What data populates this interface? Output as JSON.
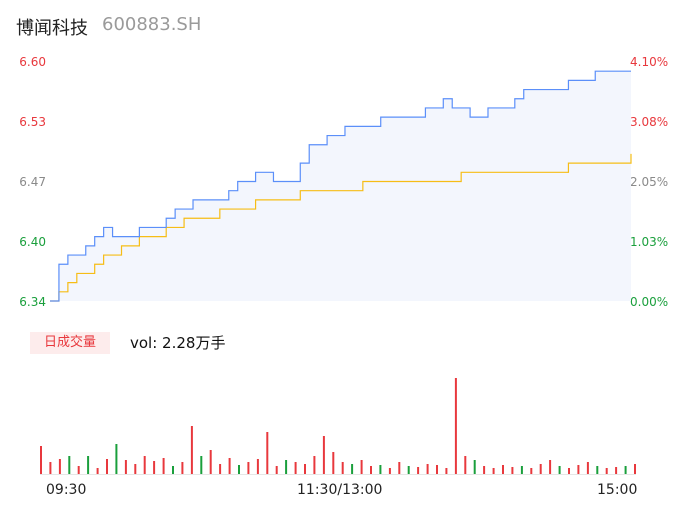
{
  "header": {
    "name": "博闻科技",
    "code": "600883.SH"
  },
  "colors": {
    "price_line": "#5b8ff9",
    "avg_line": "#f6bd16",
    "up": "#e8383d",
    "down": "#1a9f3c",
    "flat": "#8a8a8a"
  },
  "price_axis": {
    "labels": [
      "6.60",
      "6.53",
      "6.47",
      "6.40",
      "6.34"
    ]
  },
  "pct_axis": {
    "labels": [
      "4.10%",
      "3.08%",
      "2.05%",
      "1.03%",
      "0.00%"
    ]
  },
  "volume": {
    "tab_label": "日成交量",
    "summary": "vol: 2.28万手"
  },
  "time_axis": {
    "labels": [
      "09:30",
      "11:30/13:00",
      "15:00"
    ]
  },
  "chart_data": [
    {
      "type": "line",
      "ylim": [
        6.34,
        6.6
      ],
      "series": [
        {
          "values": [
            6.34,
            6.38,
            6.39,
            6.39,
            6.4,
            6.41,
            6.42,
            6.41,
            6.41,
            6.41,
            6.42,
            6.42,
            6.42,
            6.43,
            6.44,
            6.44,
            6.45,
            6.45,
            6.45,
            6.45,
            6.46,
            6.47,
            6.47,
            6.48,
            6.48,
            6.47,
            6.47,
            6.47,
            6.49,
            6.51,
            6.51,
            6.52,
            6.52,
            6.53,
            6.53,
            6.53,
            6.53,
            6.54,
            6.54,
            6.54,
            6.54,
            6.54,
            6.55,
            6.55,
            6.56,
            6.55,
            6.55,
            6.54,
            6.54,
            6.55,
            6.55,
            6.55,
            6.56,
            6.57,
            6.57,
            6.57,
            6.57,
            6.57,
            6.58,
            6.58,
            6.58,
            6.59,
            6.59,
            6.59,
            6.59,
            6.59
          ]
        },
        {
          "values": [
            6.34,
            6.35,
            6.36,
            6.37,
            6.37,
            6.38,
            6.39,
            6.39,
            6.4,
            6.4,
            6.41,
            6.41,
            6.41,
            6.42,
            6.42,
            6.43,
            6.43,
            6.43,
            6.43,
            6.44,
            6.44,
            6.44,
            6.44,
            6.45,
            6.45,
            6.45,
            6.45,
            6.45,
            6.46,
            6.46,
            6.46,
            6.46,
            6.46,
            6.46,
            6.46,
            6.47,
            6.47,
            6.47,
            6.47,
            6.47,
            6.47,
            6.47,
            6.47,
            6.47,
            6.47,
            6.47,
            6.48,
            6.48,
            6.48,
            6.48,
            6.48,
            6.48,
            6.48,
            6.48,
            6.48,
            6.48,
            6.48,
            6.48,
            6.49,
            6.49,
            6.49,
            6.49,
            6.49,
            6.49,
            6.49,
            6.5
          ]
        }
      ]
    },
    {
      "type": "bar",
      "values": [
        28,
        12,
        15,
        18,
        8,
        18,
        6,
        15,
        30,
        14,
        10,
        18,
        13,
        16,
        8,
        12,
        48,
        18,
        24,
        10,
        16,
        9,
        12,
        15,
        42,
        8,
        14,
        12,
        10,
        18,
        38,
        22,
        12,
        10,
        14,
        8,
        9,
        6,
        12,
        8,
        7,
        10,
        9,
        6,
        96,
        18,
        14,
        8,
        6,
        9,
        7,
        8,
        6,
        10,
        14,
        8,
        6,
        9,
        12,
        8,
        6,
        7,
        8,
        10
      ],
      "up": [
        true,
        true,
        true,
        false,
        true,
        false,
        true,
        true,
        false,
        true,
        true,
        true,
        true,
        true,
        false,
        true,
        true,
        false,
        true,
        true,
        true,
        false,
        true,
        true,
        true,
        true,
        false,
        true,
        true,
        true,
        true,
        true,
        true,
        false,
        true,
        true,
        false,
        true,
        true,
        false,
        true,
        true,
        true,
        true,
        true,
        true,
        false,
        true,
        true,
        true,
        true,
        false,
        true,
        true,
        true,
        false,
        true,
        true,
        true,
        false,
        true,
        true,
        false,
        true
      ]
    }
  ]
}
